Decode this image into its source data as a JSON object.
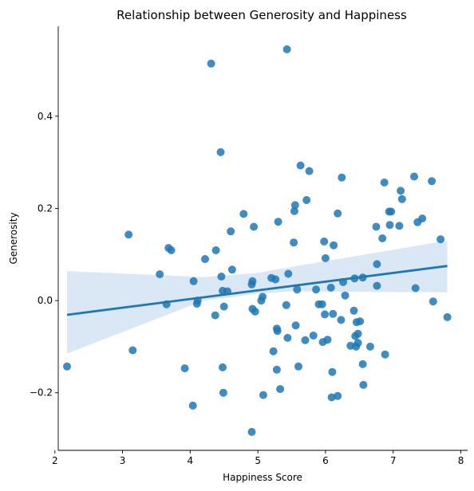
{
  "chart_data": {
    "type": "scatter",
    "title": "Relationship between Generosity and Happiness",
    "xlabel": "Happiness Score",
    "ylabel": "Generosity",
    "xlim": [
      2.05,
      8.1
    ],
    "ylim": [
      -0.325,
      0.595
    ],
    "x_ticks": [
      2,
      3,
      4,
      5,
      6,
      7,
      8
    ],
    "x_tick_labels": [
      "2",
      "3",
      "4",
      "5",
      "6",
      "7",
      "8"
    ],
    "y_ticks": [
      -0.2,
      0.0,
      0.2,
      0.4
    ],
    "y_tick_labels": [
      "−0.2",
      "0.0",
      "0.2",
      "0.4"
    ],
    "grid": false,
    "colors": {
      "points": "#1f77b4",
      "line": "#1f77b4",
      "band": "#c6dbef"
    },
    "regression": {
      "x": [
        2.18,
        7.8
      ],
      "y": [
        -0.031,
        0.075
      ],
      "ci_band": {
        "x": [
          2.18,
          4.2,
          5.0,
          5.5,
          7.8
        ],
        "lower": [
          -0.115,
          0.0,
          0.015,
          0.02,
          0.018
        ],
        "upper": [
          0.064,
          0.051,
          0.06,
          0.073,
          0.13
        ]
      }
    },
    "points": [
      {
        "x": 2.18,
        "y": -0.143
      },
      {
        "x": 3.09,
        "y": 0.143
      },
      {
        "x": 3.15,
        "y": -0.108
      },
      {
        "x": 3.55,
        "y": 0.057
      },
      {
        "x": 3.65,
        "y": -0.008
      },
      {
        "x": 3.68,
        "y": 0.114
      },
      {
        "x": 3.72,
        "y": 0.109
      },
      {
        "x": 3.92,
        "y": -0.147
      },
      {
        "x": 4.04,
        "y": -0.228
      },
      {
        "x": 4.05,
        "y": 0.042
      },
      {
        "x": 4.1,
        "y": -0.007
      },
      {
        "x": 4.11,
        "y": 0.0
      },
      {
        "x": 4.22,
        "y": 0.09
      },
      {
        "x": 4.31,
        "y": 0.514
      },
      {
        "x": 4.37,
        "y": -0.032
      },
      {
        "x": 4.38,
        "y": 0.109
      },
      {
        "x": 4.45,
        "y": 0.322
      },
      {
        "x": 4.46,
        "y": 0.052
      },
      {
        "x": 4.48,
        "y": 0.021
      },
      {
        "x": 4.48,
        "y": -0.145
      },
      {
        "x": 4.49,
        "y": -0.2
      },
      {
        "x": 4.5,
        "y": -0.013
      },
      {
        "x": 4.55,
        "y": 0.02
      },
      {
        "x": 4.6,
        "y": 0.15
      },
      {
        "x": 4.62,
        "y": 0.067
      },
      {
        "x": 4.79,
        "y": 0.188
      },
      {
        "x": 4.91,
        "y": -0.285
      },
      {
        "x": 4.91,
        "y": 0.035
      },
      {
        "x": 4.92,
        "y": 0.042
      },
      {
        "x": 4.92,
        "y": -0.018
      },
      {
        "x": 4.94,
        "y": 0.16
      },
      {
        "x": 4.96,
        "y": -0.024
      },
      {
        "x": 5.05,
        "y": 0.0
      },
      {
        "x": 5.07,
        "y": 0.008
      },
      {
        "x": 5.08,
        "y": -0.205
      },
      {
        "x": 5.2,
        "y": 0.049
      },
      {
        "x": 5.23,
        "y": -0.11
      },
      {
        "x": 5.26,
        "y": 0.046
      },
      {
        "x": 5.28,
        "y": -0.061
      },
      {
        "x": 5.28,
        "y": -0.15
      },
      {
        "x": 5.29,
        "y": -0.066
      },
      {
        "x": 5.3,
        "y": 0.171
      },
      {
        "x": 5.33,
        "y": -0.192
      },
      {
        "x": 5.42,
        "y": -0.01
      },
      {
        "x": 5.43,
        "y": 0.545
      },
      {
        "x": 5.44,
        "y": -0.081
      },
      {
        "x": 5.45,
        "y": 0.058
      },
      {
        "x": 5.53,
        "y": 0.126
      },
      {
        "x": 5.54,
        "y": 0.194
      },
      {
        "x": 5.55,
        "y": 0.207
      },
      {
        "x": 5.56,
        "y": -0.054
      },
      {
        "x": 5.58,
        "y": 0.024
      },
      {
        "x": 5.6,
        "y": -0.143
      },
      {
        "x": 5.63,
        "y": 0.293
      },
      {
        "x": 5.7,
        "y": -0.086
      },
      {
        "x": 5.72,
        "y": 0.218
      },
      {
        "x": 5.76,
        "y": 0.281
      },
      {
        "x": 5.82,
        "y": -0.076
      },
      {
        "x": 5.86,
        "y": 0.024
      },
      {
        "x": 5.9,
        "y": -0.008
      },
      {
        "x": 5.95,
        "y": -0.008
      },
      {
        "x": 5.96,
        "y": -0.09
      },
      {
        "x": 5.98,
        "y": 0.128
      },
      {
        "x": 5.99,
        "y": -0.03
      },
      {
        "x": 6.0,
        "y": 0.092
      },
      {
        "x": 6.03,
        "y": -0.085
      },
      {
        "x": 6.08,
        "y": 0.028
      },
      {
        "x": 6.09,
        "y": -0.21
      },
      {
        "x": 6.1,
        "y": -0.155
      },
      {
        "x": 6.11,
        "y": -0.029
      },
      {
        "x": 6.12,
        "y": 0.12
      },
      {
        "x": 6.18,
        "y": 0.189
      },
      {
        "x": 6.18,
        "y": -0.207
      },
      {
        "x": 6.23,
        "y": -0.042
      },
      {
        "x": 6.24,
        "y": 0.267
      },
      {
        "x": 6.26,
        "y": 0.04
      },
      {
        "x": 6.29,
        "y": 0.011
      },
      {
        "x": 6.37,
        "y": -0.098
      },
      {
        "x": 6.42,
        "y": -0.022
      },
      {
        "x": 6.43,
        "y": 0.048
      },
      {
        "x": 6.44,
        "y": -0.077
      },
      {
        "x": 6.45,
        "y": -0.1
      },
      {
        "x": 6.46,
        "y": -0.047
      },
      {
        "x": 6.48,
        "y": -0.072
      },
      {
        "x": 6.48,
        "y": -0.092
      },
      {
        "x": 6.51,
        "y": -0.045
      },
      {
        "x": 6.55,
        "y": 0.05
      },
      {
        "x": 6.55,
        "y": -0.138
      },
      {
        "x": 6.56,
        "y": -0.183
      },
      {
        "x": 6.66,
        "y": -0.1
      },
      {
        "x": 6.75,
        "y": 0.16
      },
      {
        "x": 6.76,
        "y": 0.079
      },
      {
        "x": 6.76,
        "y": 0.032
      },
      {
        "x": 6.84,
        "y": 0.135
      },
      {
        "x": 6.87,
        "y": 0.256
      },
      {
        "x": 6.88,
        "y": -0.117
      },
      {
        "x": 6.94,
        "y": 0.193
      },
      {
        "x": 6.95,
        "y": 0.164
      },
      {
        "x": 6.97,
        "y": 0.193
      },
      {
        "x": 7.09,
        "y": 0.162
      },
      {
        "x": 7.11,
        "y": 0.238
      },
      {
        "x": 7.13,
        "y": 0.22
      },
      {
        "x": 7.31,
        "y": 0.269
      },
      {
        "x": 7.33,
        "y": 0.027
      },
      {
        "x": 7.36,
        "y": 0.17
      },
      {
        "x": 7.43,
        "y": 0.178
      },
      {
        "x": 7.57,
        "y": 0.259
      },
      {
        "x": 7.59,
        "y": -0.002
      },
      {
        "x": 7.7,
        "y": 0.133
      },
      {
        "x": 7.8,
        "y": -0.036
      }
    ]
  }
}
